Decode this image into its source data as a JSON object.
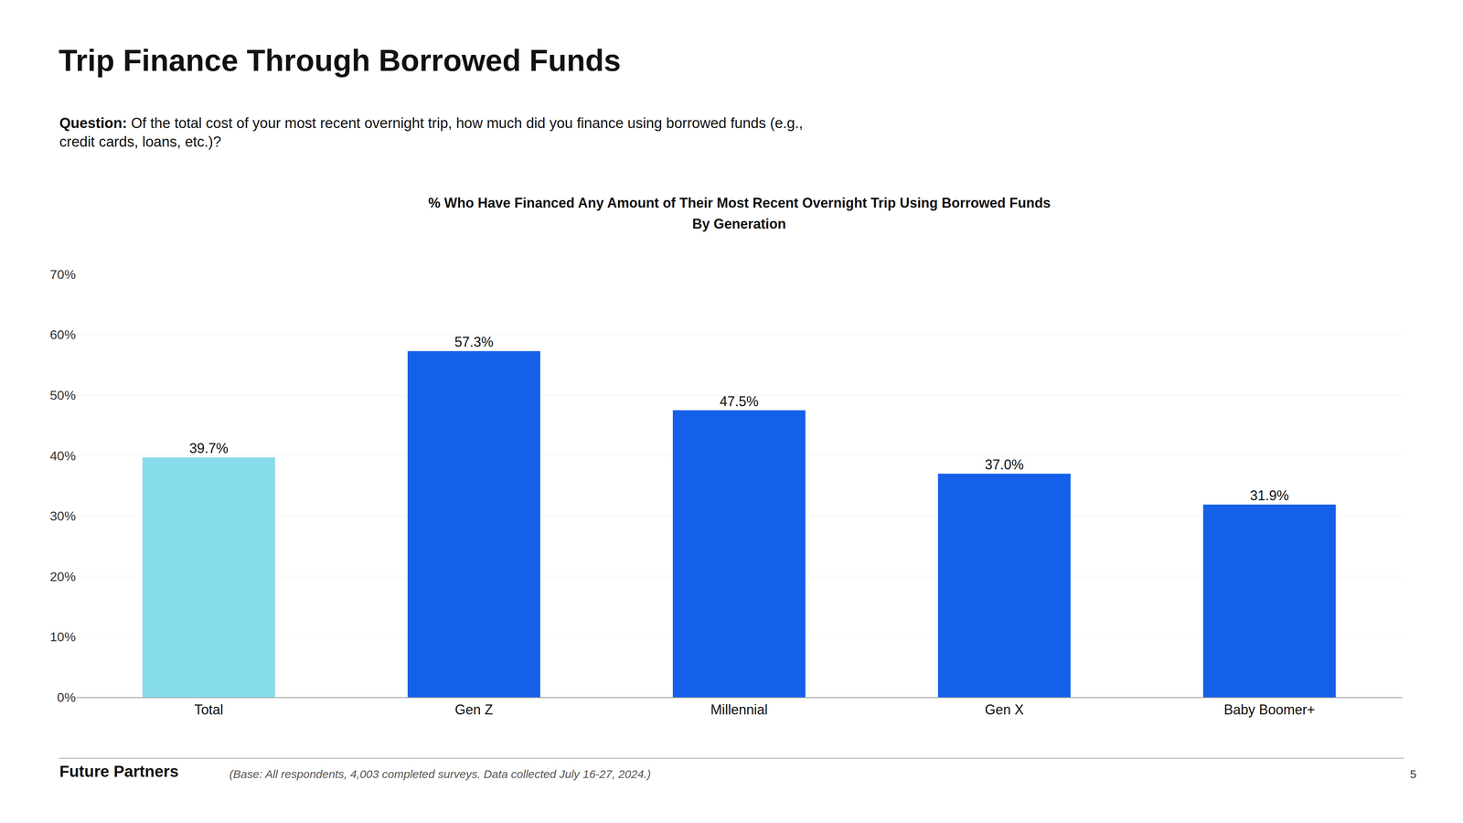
{
  "chart_data": {
    "type": "bar",
    "title": "Trip Finance Through Borrowed Funds",
    "subtitle": "% Who Have Financed Any Amount of Their Most Recent Overnight Trip Using Borrowed Funds",
    "annotations": [
      "By Generation",
      "Question:",
      "Of the total cost of your most recent overnight trip, how much did you finance using borrowed funds (e.g.,\ncredit cards, loans, etc.)?",
      "Future Partners",
      "(Base: All respondents, 4,003 completed surveys. Data collected July 16-27, 2024.)",
      "5"
    ],
    "categories": [
      "Total",
      "Gen Z",
      "Millennial",
      "Gen X",
      "Baby Boomer+"
    ],
    "values": [
      39.7,
      57.3,
      47.5,
      37.0,
      31.9
    ],
    "value_labels": [
      "39.7%",
      "57.3%",
      "47.5%",
      "37.0%",
      "31.9%"
    ],
    "data_labels": true,
    "colors": [
      "#87DCEC",
      "#1560E8",
      "#1560E8",
      "#1560E8",
      "#1560E8"
    ],
    "ylim": [
      0,
      70
    ],
    "yticks": [
      {
        "value": 0,
        "label": "0%"
      },
      {
        "value": 10,
        "label": "10%"
      },
      {
        "value": 20,
        "label": "20%"
      },
      {
        "value": 30,
        "label": "30%"
      },
      {
        "value": 40,
        "label": "40%"
      },
      {
        "value": 50,
        "label": "50%"
      },
      {
        "value": 60,
        "label": "60%"
      },
      {
        "value": 70,
        "label": "70%"
      }
    ],
    "grid": true
  }
}
